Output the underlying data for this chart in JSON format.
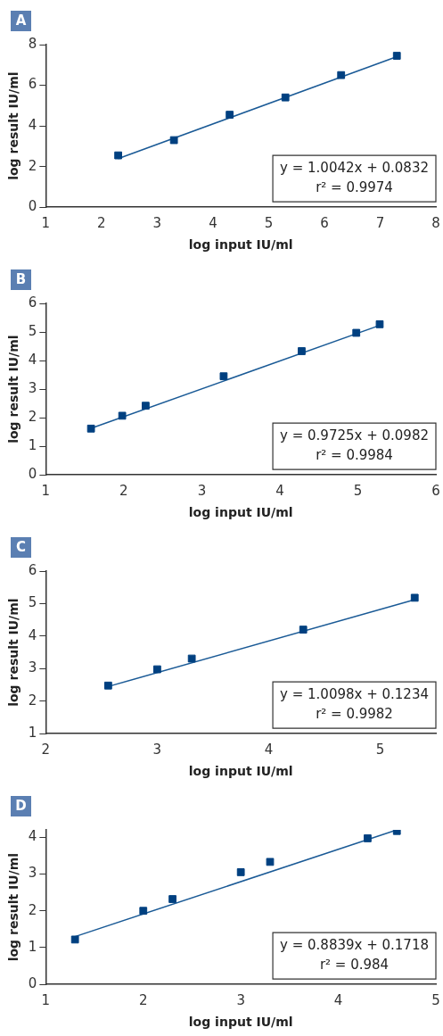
{
  "chart_data": [
    {
      "type": "scatter",
      "title": "A",
      "xlabel": "log input IU/ml",
      "ylabel": "log result IU/ml",
      "xlim": [
        1,
        8
      ],
      "xticks": [
        1,
        2,
        3,
        4,
        5,
        6,
        7,
        8
      ],
      "ylim": [
        0,
        8
      ],
      "yticks": [
        0,
        2,
        4,
        6,
        8
      ],
      "grid": false,
      "legend": false,
      "annotations": [
        "y = 1.0042x + 0.0832",
        "r² = 0.9974"
      ],
      "series": [
        {
          "type": "scatter",
          "marker": "square",
          "color": "#004080",
          "x": [
            2.3,
            3.3,
            4.3,
            5.3,
            6.3,
            7.3
          ],
          "values": [
            2.55,
            3.3,
            4.55,
            5.4,
            6.5,
            7.45
          ]
        },
        {
          "type": "line",
          "marker": "none",
          "line_style": "solid",
          "color": "#1a5a96",
          "x": [
            2.3,
            7.3
          ],
          "values": [
            2.39,
            7.41
          ]
        }
      ]
    },
    {
      "type": "scatter",
      "title": "B",
      "xlabel": "log input IU/ml",
      "ylabel": "log result IU/ml",
      "xlim": [
        1,
        6
      ],
      "xticks": [
        1,
        2,
        3,
        4,
        5,
        6
      ],
      "ylim": [
        0,
        6
      ],
      "yticks": [
        0,
        1,
        2,
        3,
        4,
        5,
        6
      ],
      "grid": false,
      "legend": false,
      "annotations": [
        "y = 0.9725x + 0.0982",
        "r² = 0.9984"
      ],
      "series": [
        {
          "type": "scatter",
          "marker": "square",
          "color": "#004080",
          "x": [
            1.58,
            1.98,
            2.28,
            3.28,
            4.28,
            4.98,
            5.28
          ],
          "values": [
            1.62,
            2.07,
            2.42,
            3.45,
            4.33,
            4.97,
            5.27
          ]
        },
        {
          "type": "line",
          "marker": "none",
          "line_style": "solid",
          "color": "#1a5a96",
          "x": [
            1.58,
            5.28
          ],
          "values": [
            1.63,
            5.23
          ]
        }
      ]
    },
    {
      "type": "scatter",
      "title": "C",
      "xlabel": "log input IU/ml",
      "ylabel": "log result IU/ml",
      "xlim": [
        2,
        5.5
      ],
      "xticks": [
        2,
        3,
        4,
        5
      ],
      "ylim": [
        1,
        6
      ],
      "yticks": [
        1,
        2,
        3,
        4,
        5,
        6
      ],
      "grid": false,
      "legend": false,
      "annotations": [
        "y = 1.0098x + 0.1234",
        "r² = 0.9982"
      ],
      "series": [
        {
          "type": "scatter",
          "marker": "square",
          "color": "#004080",
          "x": [
            2.56,
            3.0,
            3.31,
            4.31,
            5.31
          ],
          "values": [
            2.48,
            2.98,
            3.31,
            4.2,
            5.18
          ]
        },
        {
          "type": "line",
          "marker": "none",
          "line_style": "solid",
          "color": "#1a5a96",
          "x": [
            2.56,
            5.31
          ],
          "values": [
            2.45,
            5.12
          ]
        }
      ]
    },
    {
      "type": "scatter",
      "title": "D",
      "xlabel": "log input IU/ml",
      "ylabel": "log result IU/ml",
      "xlim": [
        1,
        5
      ],
      "xticks": [
        1,
        2,
        3,
        4,
        5
      ],
      "ylim": [
        0,
        4.2
      ],
      "yticks": [
        0,
        1,
        2,
        3,
        4
      ],
      "grid": false,
      "legend": false,
      "annotations": [
        "y = 0.8839x + 0.1718",
        "r² = 0.984"
      ],
      "series": [
        {
          "type": "scatter",
          "marker": "square",
          "color": "#004080",
          "x": [
            1.3,
            2.0,
            2.3,
            3.0,
            3.3,
            4.3,
            4.6
          ],
          "values": [
            1.22,
            2.0,
            2.32,
            3.05,
            3.33,
            3.97,
            4.17
          ]
        },
        {
          "type": "line",
          "marker": "none",
          "line_style": "solid",
          "color": "#1a5a96",
          "x": [
            1.3,
            4.6
          ],
          "values": [
            1.3,
            4.2
          ]
        }
      ]
    }
  ]
}
